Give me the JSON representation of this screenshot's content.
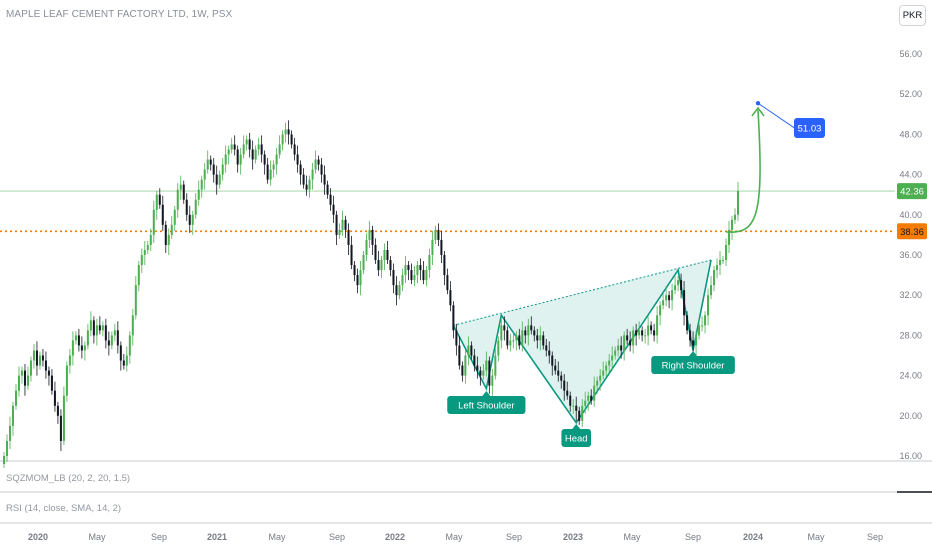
{
  "header": {
    "title": "MAPLE LEAF CEMENT FACTORY LTD, 1W, PSX",
    "currency": "PKR"
  },
  "chart_data": {
    "type": "candlestick",
    "ylim": [
      16,
      58
    ],
    "y_ticks": [
      "56.00",
      "52.00",
      "48.00",
      "44.00",
      "40.00",
      "36.00",
      "32.00",
      "28.00",
      "24.00",
      "20.00",
      "16.00"
    ],
    "x_ticks": [
      "2020",
      "May",
      "Sep",
      "2021",
      "May",
      "Sep",
      "2022",
      "May",
      "Sep",
      "2023",
      "May",
      "Sep",
      "2024",
      "May",
      "Sep"
    ],
    "close_series": [
      16,
      17.5,
      19,
      21,
      22.5,
      24,
      24.5,
      23,
      24,
      25.5,
      26.5,
      25,
      26,
      25.5,
      24.5,
      24,
      22.5,
      21,
      20,
      17.5,
      22,
      25,
      26,
      27.5,
      28,
      27,
      26.5,
      27,
      28.5,
      29.5,
      28,
      29,
      28.5,
      29,
      27.5,
      27,
      28,
      28.5,
      27,
      25.5,
      25,
      26,
      28,
      30,
      33,
      35,
      36,
      36.5,
      37,
      38,
      40.5,
      42,
      41,
      39,
      37,
      38,
      39,
      40.5,
      42.5,
      43,
      41.5,
      40,
      39,
      40,
      41.5,
      42.5,
      43.5,
      44.5,
      45.5,
      45,
      44,
      43,
      44,
      45,
      46,
      46.5,
      47,
      46.5,
      45,
      46,
      47,
      47.5,
      46.5,
      45.5,
      46.5,
      47,
      46,
      45,
      43.5,
      44.5,
      45,
      46,
      47,
      48,
      48.5,
      48,
      47,
      46,
      45,
      44,
      43,
      42.5,
      43.5,
      44.5,
      45.5,
      45,
      44,
      43,
      42,
      41,
      40,
      38,
      38.5,
      39.5,
      38.5,
      37,
      35,
      34,
      33,
      34.5,
      36,
      37.5,
      38.5,
      37,
      35.5,
      34.5,
      35.5,
      36.5,
      35.5,
      34.5,
      33,
      32,
      33,
      34,
      35,
      34.5,
      33.5,
      34,
      35,
      34.5,
      33.5,
      34.5,
      36,
      37.5,
      38.5,
      37.5,
      36,
      34,
      32.5,
      31,
      28.5,
      27,
      25,
      24,
      26,
      27,
      26,
      25,
      24.5,
      24,
      24.5,
      25.5,
      23,
      24,
      26,
      27.5,
      29,
      28.5,
      27,
      27.5,
      27.5,
      28,
      27,
      28.5,
      28,
      29,
      28.5,
      28,
      27.5,
      28,
      27,
      26.5,
      26,
      25,
      24.5,
      24,
      23.5,
      22.5,
      22,
      21,
      21,
      20.5,
      19.5,
      21,
      21.5,
      22,
      21.5,
      23,
      23.5,
      24,
      24.5,
      25,
      25.5,
      26,
      26.5,
      27,
      26.5,
      28,
      27.5,
      27,
      28.5,
      28,
      28.5,
      28,
      28,
      29,
      28.5,
      28,
      30,
      31,
      31.5,
      32,
      31.5,
      32.5,
      33,
      33.5,
      32.5,
      30,
      28.5,
      27.5,
      27,
      28,
      29,
      29,
      30,
      32,
      33,
      34.5,
      35,
      35.5,
      35.5,
      37,
      38.5,
      39.5,
      40,
      42.36
    ],
    "last_price": "42.36",
    "level_price": "38.36",
    "target_price": "51.03",
    "annotations": [
      "Left Shoulder",
      "Head",
      "Right Shoulder"
    ],
    "indicators": [
      "SQZMOM_LB (20, 2, 20, 1.5)",
      "RSI (14, close, SMA, 14, 2)"
    ],
    "colors": {
      "up": "#4caf50",
      "down": "#131722",
      "pattern": "#089981",
      "level": "#f57c00",
      "target": "#2962ff"
    }
  }
}
